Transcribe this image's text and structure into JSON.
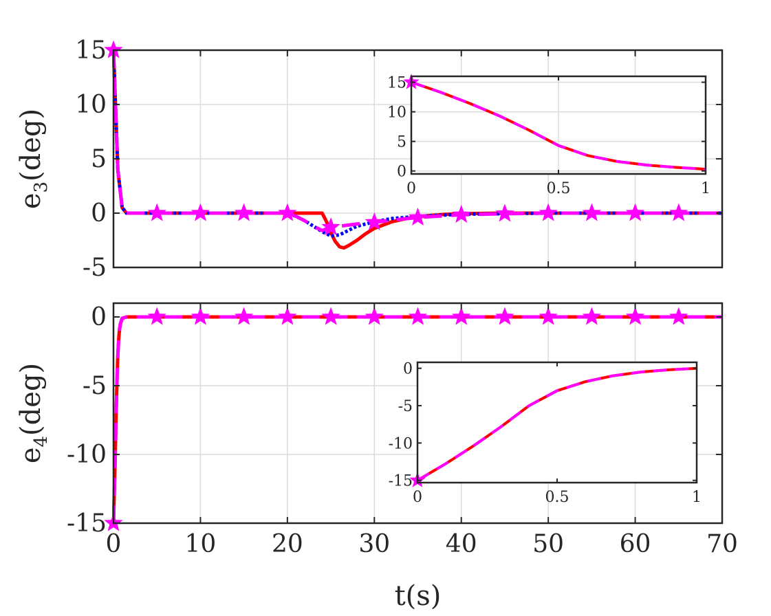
{
  "chart_data": [
    {
      "type": "line",
      "ylabel_main": "e",
      "ylabel_sub": "3",
      "ylabel_unit": "(deg)",
      "xlabel": "",
      "xlim": [
        0,
        70
      ],
      "ylim": [
        -5,
        15
      ],
      "xticks": [
        0,
        10,
        20,
        30,
        40,
        50,
        60,
        70
      ],
      "xtick_labels": [
        "",
        "",
        "",
        "",
        "",
        "",
        "",
        ""
      ],
      "yticks": [
        15,
        10,
        5,
        0,
        -5
      ],
      "ytick_labels": [
        "15",
        "10",
        "5",
        "0",
        "-5"
      ],
      "grid": true,
      "series": [
        {
          "color": "#ff0000",
          "style": "solid",
          "x": [
            0,
            0.5,
            1,
            1.5,
            2,
            24,
            24.5,
            25,
            25.5,
            26,
            26.5,
            27,
            28,
            29,
            30,
            32,
            34,
            36,
            38,
            40,
            45,
            50,
            70
          ],
          "y": [
            15,
            4,
            0.5,
            0,
            0,
            0,
            -0.8,
            -1.8,
            -2.6,
            -3.1,
            -3.2,
            -3.0,
            -2.5,
            -1.9,
            -1.4,
            -0.8,
            -0.45,
            -0.25,
            -0.12,
            -0.05,
            0,
            0,
            0
          ]
        },
        {
          "color": "#0000ff",
          "style": "dotted",
          "x": [
            0,
            0.5,
            1,
            1.5,
            2,
            20,
            21,
            22,
            23,
            24,
            25,
            26,
            27,
            28,
            30,
            32,
            35,
            40,
            45,
            50,
            70
          ],
          "y": [
            15,
            4,
            0.5,
            0,
            0,
            0,
            -0.3,
            -0.7,
            -1.2,
            -1.7,
            -2.1,
            -2.0,
            -1.6,
            -1.2,
            -0.8,
            -0.5,
            -0.3,
            -0.1,
            -0.05,
            0,
            0
          ]
        },
        {
          "color": "#ff00ff",
          "style": "dashed",
          "marker": "star",
          "x": [
            0,
            0.5,
            1,
            1.5,
            2,
            20,
            21,
            22,
            23,
            24,
            25,
            26,
            27,
            28,
            30,
            32,
            35,
            40,
            45,
            50,
            70
          ],
          "y": [
            15,
            4,
            0.5,
            0,
            0,
            0,
            -0.3,
            -0.7,
            -1.2,
            -1.6,
            -1.3,
            -1.2,
            -1.1,
            -1.0,
            -0.85,
            -0.65,
            -0.4,
            -0.15,
            -0.05,
            0,
            0
          ],
          "marker_x": [
            0,
            5,
            10,
            15,
            20,
            25,
            30,
            35,
            40,
            45,
            50,
            55,
            60,
            65
          ],
          "marker_y": [
            15,
            0,
            0,
            0,
            0,
            -1.3,
            -0.85,
            -0.4,
            -0.15,
            -0.05,
            0,
            0,
            0,
            0
          ]
        }
      ]
    },
    {
      "type": "line",
      "inset_of": 0,
      "xlim": [
        0,
        1
      ],
      "ylim": [
        -0.5,
        16
      ],
      "xticks": [
        0,
        0.5,
        1
      ],
      "xtick_labels": [
        "0",
        "0.5",
        "1"
      ],
      "yticks": [
        15,
        10,
        5,
        0
      ],
      "ytick_labels": [
        "15",
        "10",
        "5",
        "0"
      ],
      "grid": true,
      "series": [
        {
          "color": "#ff0000",
          "style": "solid",
          "x": [
            0,
            0.1,
            0.2,
            0.3,
            0.4,
            0.5,
            0.6,
            0.7,
            0.8,
            0.9,
            1.0
          ],
          "y": [
            15,
            13.3,
            11.4,
            9.3,
            6.9,
            4.3,
            2.6,
            1.6,
            1.0,
            0.6,
            0.3
          ]
        },
        {
          "color": "#ff00ff",
          "style": "dashed",
          "marker": "star",
          "x": [
            0,
            0.1,
            0.2,
            0.3,
            0.4,
            0.5,
            0.6,
            0.7,
            0.8,
            0.9,
            1.0
          ],
          "y": [
            15,
            13.3,
            11.4,
            9.3,
            6.9,
            4.3,
            2.6,
            1.6,
            1.0,
            0.6,
            0.3
          ],
          "marker_x": [
            0
          ],
          "marker_y": [
            15
          ]
        }
      ]
    },
    {
      "type": "line",
      "ylabel_main": "e",
      "ylabel_sub": "4",
      "ylabel_unit": "(deg)",
      "xlabel": "t(s)",
      "xlim": [
        0,
        70
      ],
      "ylim": [
        -15,
        1
      ],
      "xticks": [
        0,
        10,
        20,
        30,
        40,
        50,
        60,
        70
      ],
      "xtick_labels": [
        "0",
        "10",
        "20",
        "30",
        "40",
        "50",
        "60",
        "70"
      ],
      "yticks": [
        0,
        -5,
        -10,
        -15
      ],
      "ytick_labels": [
        "0",
        "-5",
        "-10",
        "-15"
      ],
      "grid": true,
      "series": [
        {
          "color": "#ff0000",
          "style": "solid",
          "x": [
            0,
            0.1,
            0.2,
            0.3,
            0.4,
            0.5,
            0.6,
            0.7,
            0.8,
            1.0,
            1.5,
            2,
            70
          ],
          "y": [
            -15,
            -12.5,
            -10.2,
            -7.2,
            -4.6,
            -2.8,
            -1.6,
            -0.9,
            -0.5,
            -0.1,
            0,
            0,
            0
          ]
        },
        {
          "color": "#ff00ff",
          "style": "dashed",
          "marker": "star",
          "x": [
            0,
            0.1,
            0.2,
            0.3,
            0.4,
            0.5,
            0.6,
            0.7,
            0.8,
            1.0,
            1.5,
            2,
            70
          ],
          "y": [
            -15,
            -12.5,
            -10.2,
            -7.2,
            -4.6,
            -2.8,
            -1.6,
            -0.9,
            -0.5,
            -0.1,
            0,
            0,
            0
          ],
          "marker_x": [
            0,
            5,
            10,
            15,
            20,
            25,
            30,
            35,
            40,
            45,
            50,
            55,
            60,
            65
          ],
          "marker_y": [
            -15,
            0,
            0,
            0,
            0,
            0,
            0,
            0,
            0,
            0,
            0,
            0,
            0,
            0
          ]
        }
      ]
    },
    {
      "type": "line",
      "inset_of": 2,
      "xlim": [
        0,
        1
      ],
      "ylim": [
        -15.3,
        0.8
      ],
      "xticks": [
        0,
        0.5,
        1
      ],
      "xtick_labels": [
        "0",
        "0.5",
        "1"
      ],
      "yticks": [
        0,
        -5,
        -10,
        -15
      ],
      "ytick_labels": [
        "0",
        "-5",
        "-10",
        "-15"
      ],
      "grid": false,
      "series": [
        {
          "color": "#ff0000",
          "style": "solid",
          "x": [
            0,
            0.1,
            0.2,
            0.3,
            0.4,
            0.5,
            0.6,
            0.7,
            0.8,
            0.9,
            1.0
          ],
          "y": [
            -15,
            -12.8,
            -10.4,
            -7.8,
            -5.0,
            -3.0,
            -1.8,
            -1.0,
            -0.5,
            -0.2,
            0
          ]
        },
        {
          "color": "#ff00ff",
          "style": "dashed",
          "marker": "star",
          "x": [
            0,
            0.1,
            0.2,
            0.3,
            0.4,
            0.5,
            0.6,
            0.7,
            0.8,
            0.9,
            1.0
          ],
          "y": [
            -15,
            -12.8,
            -10.4,
            -7.8,
            -5.0,
            -3.0,
            -1.8,
            -1.0,
            -0.5,
            -0.2,
            0
          ],
          "marker_x": [
            0
          ],
          "marker_y": [
            -15
          ]
        }
      ]
    }
  ]
}
